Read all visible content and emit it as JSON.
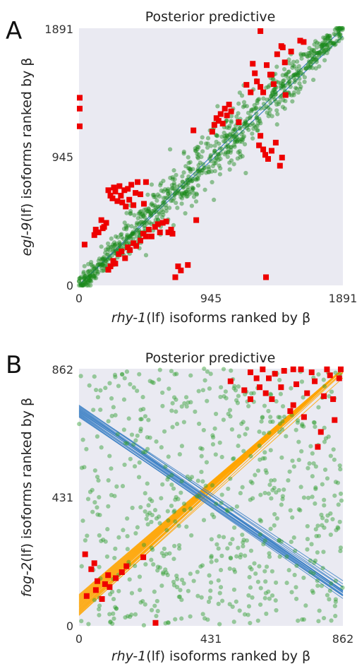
{
  "chart_data": [
    {
      "panel": "A",
      "type": "scatter",
      "title": "Posterior predictive",
      "xlabel_gene": "rhy-1",
      "xlabel_rest": "(lf) isoforms ranked by β",
      "ylabel_gene": "egl-9",
      "ylabel_rest": "(lf) isoforms ranked by β",
      "xlim": [
        0,
        1891
      ],
      "ylim": [
        0,
        1891
      ],
      "xticks": [
        "0",
        "945",
        "1891"
      ],
      "yticks": [
        "0",
        "945",
        "1891"
      ],
      "grid": false,
      "colors": {
        "inliers": "#1a8a1a",
        "outliers": "#ee0000",
        "fit": "#3a7fc4",
        "background": "#eaeaf2"
      },
      "fits": [
        {
          "intercept": 0,
          "slope": 1.0,
          "spread": 8,
          "lines": 4,
          "color": "#3a7fc4"
        }
      ],
      "inlier_model": {
        "kind": "cluster",
        "n": 900,
        "jitter": 70
      },
      "outliers": [
        [
          5,
          1380
        ],
        [
          5,
          1300
        ],
        [
          5,
          1170
        ],
        [
          40,
          300
        ],
        [
          110,
          370
        ],
        [
          120,
          410
        ],
        [
          140,
          390
        ],
        [
          160,
          480
        ],
        [
          170,
          420
        ],
        [
          180,
          430
        ],
        [
          195,
          460
        ],
        [
          210,
          700
        ],
        [
          225,
          660
        ],
        [
          240,
          640
        ],
        [
          250,
          720
        ],
        [
          260,
          690
        ],
        [
          275,
          620
        ],
        [
          290,
          730
        ],
        [
          300,
          660
        ],
        [
          310,
          610
        ],
        [
          325,
          700
        ],
        [
          335,
          580
        ],
        [
          350,
          710
        ],
        [
          360,
          630
        ],
        [
          375,
          740
        ],
        [
          390,
          590
        ],
        [
          405,
          680
        ],
        [
          420,
          760
        ],
        [
          440,
          670
        ],
        [
          465,
          600
        ],
        [
          480,
          760
        ],
        [
          210,
          115
        ],
        [
          225,
          140
        ],
        [
          245,
          180
        ],
        [
          260,
          160
        ],
        [
          285,
          230
        ],
        [
          305,
          250
        ],
        [
          330,
          200
        ],
        [
          350,
          280
        ],
        [
          365,
          260
        ],
        [
          390,
          310
        ],
        [
          410,
          290
        ],
        [
          440,
          330
        ],
        [
          460,
          380
        ],
        [
          480,
          360
        ],
        [
          500,
          410
        ],
        [
          520,
          360
        ],
        [
          545,
          430
        ],
        [
          565,
          450
        ],
        [
          580,
          390
        ],
        [
          600,
          460
        ],
        [
          625,
          470
        ],
        [
          640,
          390
        ],
        [
          660,
          410
        ],
        [
          670,
          380
        ],
        [
          690,
          60
        ],
        [
          710,
          140
        ],
        [
          730,
          110
        ],
        [
          780,
          150
        ],
        [
          840,
          480
        ],
        [
          955,
          1130
        ],
        [
          970,
          1180
        ],
        [
          985,
          1230
        ],
        [
          1000,
          1210
        ],
        [
          1015,
          1260
        ],
        [
          1030,
          1190
        ],
        [
          1045,
          1300
        ],
        [
          1060,
          1250
        ],
        [
          1075,
          1330
        ],
        [
          1090,
          1280
        ],
        [
          820,
          1140
        ],
        [
          1145,
          1200
        ],
        [
          1290,
          1030
        ],
        [
          1300,
          1100
        ],
        [
          1320,
          1000
        ],
        [
          1335,
          960
        ],
        [
          1355,
          930
        ],
        [
          1380,
          990
        ],
        [
          1410,
          1050
        ],
        [
          1440,
          880
        ],
        [
          1455,
          940
        ],
        [
          1245,
          1630
        ],
        [
          1260,
          1560
        ],
        [
          1275,
          1500
        ],
        [
          1300,
          1460
        ],
        [
          1320,
          1420
        ],
        [
          1345,
          1620
        ],
        [
          1370,
          1550
        ],
        [
          1395,
          1480
        ],
        [
          1420,
          1700
        ],
        [
          1450,
          1760
        ],
        [
          1475,
          1640
        ],
        [
          1520,
          1720
        ],
        [
          1585,
          1800
        ],
        [
          1610,
          1790
        ],
        [
          1200,
          1475
        ],
        [
          1230,
          1420
        ],
        [
          1480,
          1400
        ],
        [
          1380,
          1550
        ],
        [
          1340,
          60
        ],
        [
          1460,
          1750
        ],
        [
          1300,
          1870
        ]
      ]
    },
    {
      "panel": "B",
      "type": "scatter",
      "title": "Posterior predictive",
      "xlabel_gene": "rhy-1",
      "xlabel_rest": "(lf) isoforms ranked by β",
      "ylabel_gene": "fog-2",
      "ylabel_rest": "(lf) isoforms ranked by β",
      "xlim": [
        0,
        862
      ],
      "ylim": [
        0,
        862
      ],
      "xticks": [
        "0",
        "431",
        "862"
      ],
      "yticks": [
        "0",
        "431",
        "862"
      ],
      "grid": false,
      "colors": {
        "inliers": "#2e9e2e",
        "outliers": "#ee0000",
        "fit_positive": "#ffa500",
        "fit_negative": "#3a7fc4",
        "background": "#eaeaf2"
      },
      "fits": [
        {
          "intercept": 70,
          "slope": 0.94,
          "spread": 70,
          "lines": 28,
          "color": "#ffa500"
        },
        {
          "intercept": 720,
          "slope": -0.7,
          "spread": 40,
          "lines": 18,
          "color": "#3a7fc4"
        }
      ],
      "inlier_model": {
        "kind": "uniform",
        "n": 650
      },
      "outliers": [
        [
          20,
          240
        ],
        [
          25,
          100
        ],
        [
          40,
          190
        ],
        [
          50,
          210
        ],
        [
          55,
          120
        ],
        [
          60,
          150
        ],
        [
          75,
          90
        ],
        [
          85,
          140
        ],
        [
          95,
          170
        ],
        [
          100,
          130
        ],
        [
          120,
          160
        ],
        [
          140,
          180
        ],
        [
          155,
          200
        ],
        [
          210,
          230
        ],
        [
          250,
          10
        ],
        [
          495,
          820
        ],
        [
          560,
          850
        ],
        [
          590,
          800
        ],
        [
          600,
          860
        ],
        [
          610,
          780
        ],
        [
          620,
          830
        ],
        [
          630,
          760
        ],
        [
          640,
          845
        ],
        [
          660,
          800
        ],
        [
          670,
          855
        ],
        [
          690,
          720
        ],
        [
          700,
          740
        ],
        [
          710,
          810
        ],
        [
          725,
          860
        ],
        [
          735,
          700
        ],
        [
          745,
          780
        ],
        [
          760,
          850
        ],
        [
          770,
          820
        ],
        [
          790,
          650
        ],
        [
          800,
          770
        ],
        [
          810,
          860
        ],
        [
          820,
          840
        ],
        [
          830,
          760
        ],
        [
          835,
          690
        ],
        [
          850,
          830
        ],
        [
          855,
          860
        ],
        [
          700,
          860
        ],
        [
          560,
          760
        ],
        [
          540,
          790
        ],
        [
          780,
          600
        ],
        [
          580,
          830
        ]
      ]
    }
  ]
}
